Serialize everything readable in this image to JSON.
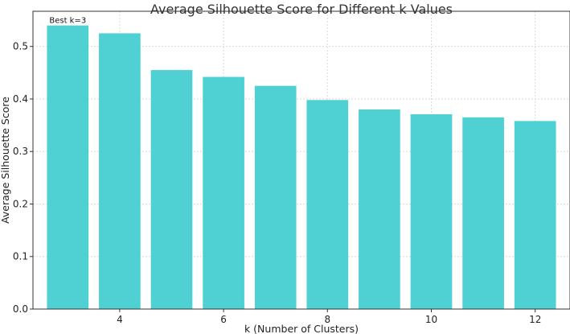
{
  "chart_data": {
    "type": "bar",
    "title": "Average Silhouette Score for Different k Values",
    "xlabel": "k (Number of Clusters)",
    "ylabel": "Average Silhouette Score",
    "categories": [
      3,
      4,
      5,
      6,
      7,
      8,
      9,
      10,
      11,
      12
    ],
    "values": [
      0.54,
      0.525,
      0.455,
      0.442,
      0.425,
      0.398,
      0.38,
      0.371,
      0.365,
      0.358
    ],
    "xlim": [
      2.33,
      12.67
    ],
    "ylim": [
      0,
      0.567
    ],
    "xticks": [
      4,
      6,
      8,
      10,
      12
    ],
    "xtick_labels": [
      "4",
      "6",
      "8",
      "10",
      "12"
    ],
    "yticks": [
      0.0,
      0.1,
      0.2,
      0.3,
      0.4,
      0.5
    ],
    "ytick_labels": [
      "0.0",
      "0.1",
      "0.2",
      "0.3",
      "0.4",
      "0.5"
    ],
    "grid": true,
    "bar_color": "#4fd1d4",
    "grid_color": "#d9d9d9",
    "annotation": {
      "text": "Best k=3",
      "x": 3,
      "y": 0.54
    }
  }
}
